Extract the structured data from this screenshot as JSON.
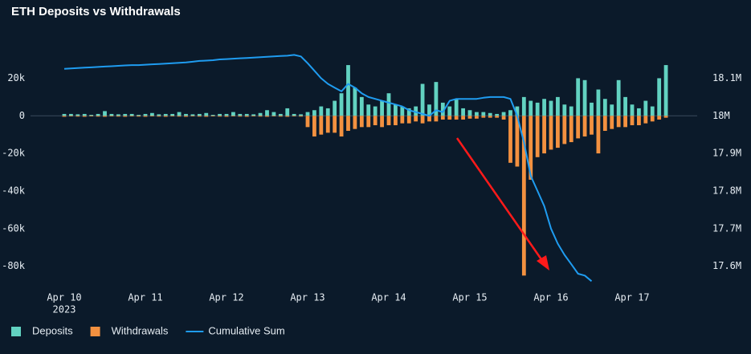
{
  "chart_data": {
    "type": "bar",
    "title": "ETH Deposits vs Withdrawals",
    "categories": [
      "Apr 10",
      null,
      null,
      null,
      null,
      null,
      null,
      null,
      null,
      null,
      null,
      null,
      "Apr 11",
      null,
      null,
      null,
      null,
      null,
      null,
      null,
      null,
      null,
      null,
      null,
      "Apr 12",
      null,
      null,
      null,
      null,
      null,
      null,
      null,
      null,
      null,
      null,
      null,
      "Apr 13",
      null,
      null,
      null,
      null,
      null,
      null,
      null,
      null,
      null,
      null,
      null,
      "Apr 14",
      null,
      null,
      null,
      null,
      null,
      null,
      null,
      null,
      null,
      null,
      null,
      "Apr 15",
      null,
      null,
      null,
      null,
      null,
      null,
      null,
      null,
      null,
      null,
      null,
      "Apr 16",
      null,
      null,
      null,
      null,
      null,
      null,
      null,
      null,
      null,
      null,
      null,
      "Apr 17",
      null,
      null,
      null,
      null,
      null
    ],
    "first_tick_year": "2023",
    "series": [
      {
        "name": "Deposits",
        "color": "#62d2c1",
        "values": [
          1000,
          1000,
          800,
          1000,
          500,
          1000,
          2500,
          1000,
          800,
          1000,
          1000,
          500,
          1000,
          1500,
          800,
          1000,
          1000,
          2000,
          1000,
          800,
          1000,
          1500,
          500,
          1000,
          1000,
          2000,
          1000,
          1000,
          800,
          1500,
          3000,
          2000,
          1000,
          4000,
          1000,
          800,
          2000,
          3000,
          5000,
          4000,
          8000,
          12000,
          27000,
          15000,
          10000,
          6000,
          5000,
          8000,
          12000,
          6000,
          5000,
          4000,
          5000,
          17000,
          6000,
          18000,
          7000,
          5000,
          9000,
          4000,
          3000,
          2000,
          2000,
          1500,
          1000,
          2000,
          3000,
          5000,
          10000,
          8000,
          7000,
          9000,
          8000,
          10000,
          6000,
          5000,
          20000,
          19000,
          7000,
          14000,
          9000,
          6000,
          19000,
          10000,
          6000,
          4000,
          8000,
          5000,
          20000,
          27000
        ]
      },
      {
        "name": "Withdrawals",
        "color": "#f39140",
        "values": [
          -500,
          -300,
          -400,
          -500,
          -300,
          -400,
          -500,
          -300,
          -400,
          -500,
          -300,
          -400,
          -500,
          -300,
          -400,
          -500,
          -300,
          -400,
          -500,
          -300,
          -400,
          -500,
          -300,
          -400,
          -500,
          -300,
          -400,
          -500,
          -300,
          -400,
          -500,
          -300,
          -400,
          -500,
          -300,
          -400,
          -6000,
          -11000,
          -10000,
          -9000,
          -9000,
          -11000,
          -8000,
          -7000,
          -6000,
          -6000,
          -5000,
          -6000,
          -5000,
          -5000,
          -4000,
          -4000,
          -3000,
          -4000,
          -3000,
          -3000,
          -2000,
          -2000,
          -2000,
          -2000,
          -1500,
          -1500,
          -1000,
          -1000,
          -1000,
          -2000,
          -25000,
          -27000,
          -85000,
          -34000,
          -22000,
          -20000,
          -18000,
          -17000,
          -15000,
          -14000,
          -12000,
          -11000,
          -10000,
          -20000,
          -8000,
          -7000,
          -6000,
          -6000,
          -5000,
          -5000,
          -4000,
          -3000,
          -2000,
          -1000
        ]
      },
      {
        "name": "Cumulative Sum",
        "color": "#1f9cf0",
        "axis": "y2",
        "values": [
          18125000,
          18126000,
          18127000,
          18128000,
          18129000,
          18130000,
          18131000,
          18132000,
          18133000,
          18134000,
          18135000,
          18135000,
          18136000,
          18137000,
          18138000,
          18139000,
          18140000,
          18141000,
          18142000,
          18144000,
          18146000,
          18147000,
          18148000,
          18150000,
          18151000,
          18152000,
          18153000,
          18154000,
          18155000,
          18156000,
          18157000,
          18158000,
          18159000,
          18160000,
          18162000,
          18158000,
          18140000,
          18120000,
          18100000,
          18085000,
          18075000,
          18065000,
          18085000,
          18075000,
          18060000,
          18050000,
          18045000,
          18040000,
          18035000,
          18030000,
          18025000,
          18015000,
          18010000,
          18005000,
          18000000,
          18015000,
          18010000,
          18040000,
          18045000,
          18045000,
          18045000,
          18045000,
          18048000,
          18050000,
          18050000,
          18050000,
          18045000,
          18000000,
          17930000,
          17840000,
          17800000,
          17760000,
          17700000,
          17660000,
          17630000,
          17605000,
          17580000,
          17575000,
          17560000,
          null,
          null,
          null,
          null,
          null,
          null,
          null,
          null,
          null,
          null,
          null
        ]
      }
    ],
    "ylim": [
      -90000,
      36000
    ],
    "yticks": [
      {
        "value": 20000,
        "label": "20k"
      },
      0,
      {
        "value": -20000,
        "label": "-20k"
      },
      {
        "value": -40000,
        "label": "-40k"
      },
      {
        "value": -60000,
        "label": "-60k"
      },
      {
        "value": -80000,
        "label": "-80k"
      }
    ],
    "y2lim": [
      17550000,
      18180000
    ],
    "y2ticks": [
      {
        "value": 18100000,
        "label": "18.1M"
      },
      {
        "value": 18000000,
        "label": "18M"
      },
      {
        "value": 17900000,
        "label": "17.9M"
      },
      {
        "value": 17800000,
        "label": "17.8M"
      },
      {
        "value": 17700000,
        "label": "17.7M"
      },
      {
        "value": 17600000,
        "label": "17.6M"
      }
    ],
    "grid": false,
    "legend": "bottom-left"
  }
}
